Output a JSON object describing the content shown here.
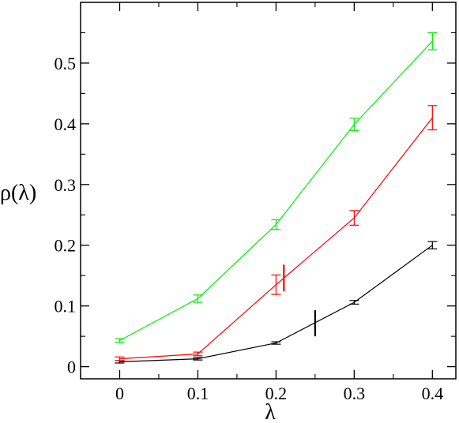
{
  "chart_data": {
    "type": "line",
    "title": "",
    "xlabel": "λ",
    "ylabel": "ρ(λ)",
    "xlim": [
      -0.05,
      0.43
    ],
    "ylim": [
      -0.02,
      0.6
    ],
    "x_ticks": [
      0,
      0.1,
      0.2,
      0.3,
      0.4
    ],
    "x_tick_labels": [
      "0",
      "0.1",
      "0.2",
      "0.3",
      "0.4"
    ],
    "y_ticks": [
      0,
      0.1,
      0.2,
      0.3,
      0.4,
      0.5
    ],
    "y_tick_labels": [
      "0",
      "0.1",
      "0.2",
      "0.3",
      "0.4",
      "0.5"
    ],
    "grid": false,
    "legend": "none",
    "x": [
      0,
      0.1,
      0.2,
      0.3,
      0.4
    ],
    "series": [
      {
        "color": "#000000",
        "values": [
          0.008,
          0.013,
          0.039,
          0.106,
          0.2
        ],
        "errors": [
          0.002,
          0.002,
          0.002,
          0.003,
          0.006
        ]
      },
      {
        "color": "#ff0000",
        "values": [
          0.013,
          0.021,
          0.135,
          0.245,
          0.41
        ],
        "errors": [
          0.003,
          0.003,
          0.016,
          0.012,
          0.02
        ]
      },
      {
        "color": "#00ee00",
        "values": [
          0.043,
          0.112,
          0.234,
          0.399,
          0.536
        ],
        "errors": [
          0.003,
          0.006,
          0.008,
          0.01,
          0.014
        ]
      }
    ],
    "markers": [
      {
        "color": "#000000",
        "x": 0.25,
        "y_range": [
          0.05,
          0.093
        ]
      },
      {
        "color": "#ff0000",
        "x": 0.21,
        "y_range": [
          0.124,
          0.168
        ]
      }
    ]
  }
}
